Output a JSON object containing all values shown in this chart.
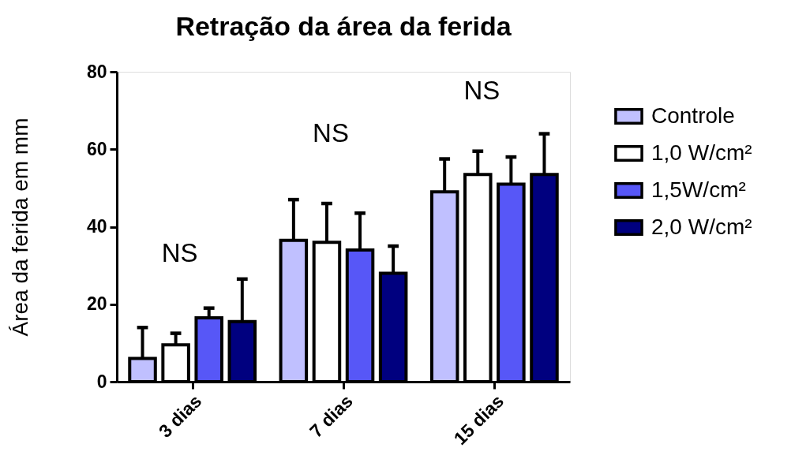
{
  "chart_data": {
    "type": "bar",
    "title": "Retração da área da ferida",
    "ylabel": "Área da ferida em mm",
    "categories": [
      "3 dias",
      "7 dias",
      "15 dias"
    ],
    "series": [
      {
        "name": "Controle",
        "color": "#c0c0ff",
        "values": [
          6,
          36.5,
          49
        ],
        "errors": [
          [
            6,
            14
          ],
          [
            36.5,
            47
          ],
          [
            49,
            57.5
          ]
        ]
      },
      {
        "name": "1,0 W/cm²",
        "color": "#ffffff",
        "values": [
          9.5,
          36,
          53.5
        ],
        "errors": [
          [
            9.5,
            12.5
          ],
          [
            36,
            46
          ],
          [
            53.5,
            59.5
          ]
        ]
      },
      {
        "name": "1,5W/cm²",
        "color": "#5757f7",
        "values": [
          16.5,
          34,
          51
        ],
        "errors": [
          [
            16.5,
            19
          ],
          [
            34,
            43.5
          ],
          [
            51,
            58
          ]
        ]
      },
      {
        "name": "2,0 W/cm²",
        "color": "#00007f",
        "values": [
          15.5,
          28,
          53.5
        ],
        "errors": [
          [
            15.5,
            26.5
          ],
          [
            28,
            35
          ],
          [
            53.5,
            64
          ]
        ]
      }
    ],
    "ylim": [
      0,
      80
    ],
    "yticks": [
      0,
      20,
      40,
      60,
      80
    ],
    "grid": false,
    "legend": "top right",
    "annotations": [
      "NS",
      "NS",
      "NS"
    ]
  }
}
